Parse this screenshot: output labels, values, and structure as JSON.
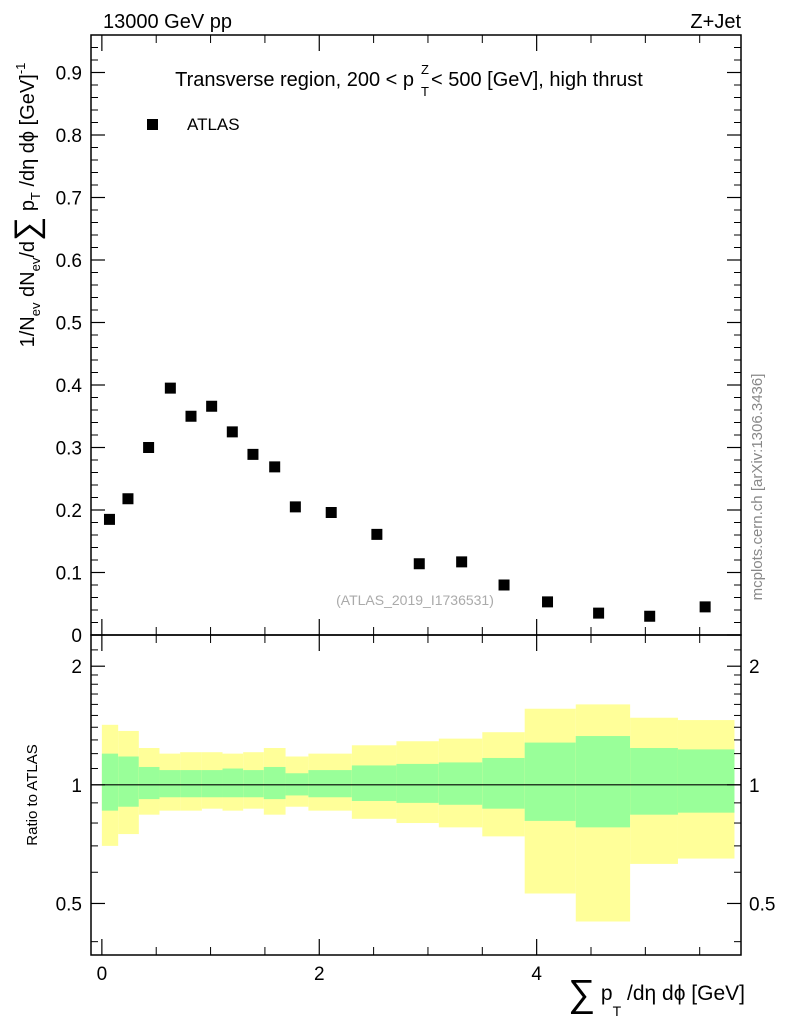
{
  "header": {
    "left_label": "13000 GeV pp",
    "right_label": "Z+Jet"
  },
  "watermark": {
    "side_label": "mcplots.cern.ch [arXiv:1306.3436]",
    "analysis_label": "(ATLAS_2019_I1736531)"
  },
  "chart_data": [
    {
      "type": "scatter",
      "panel": "main",
      "title_parts": {
        "before": "Transverse region, 200 < p",
        "sup": "Z",
        "sub": "T",
        "after": " < 500 [GeV], high thrust"
      },
      "ylabel_parts": {
        "a": "1/N",
        "a_sub": "ev",
        "b": " dN",
        "b_sub": "ev",
        "c": "/d",
        "sigma": "∑",
        "d": " p",
        "d_sub": "T",
        "e": " /dη dϕ  [GeV]",
        "e_sup": "-1"
      },
      "xlim": [
        -0.1,
        5.88
      ],
      "ylim": [
        0,
        0.96
      ],
      "yticks": [
        {
          "v": 0,
          "label": "0"
        },
        {
          "v": 0.1,
          "label": "0.1"
        },
        {
          "v": 0.2,
          "label": "0.2"
        },
        {
          "v": 0.3,
          "label": "0.3"
        },
        {
          "v": 0.4,
          "label": "0.4"
        },
        {
          "v": 0.5,
          "label": "0.5"
        },
        {
          "v": 0.6,
          "label": "0.6"
        },
        {
          "v": 0.7,
          "label": "0.7"
        },
        {
          "v": 0.8,
          "label": "0.8"
        },
        {
          "v": 0.9,
          "label": "0.9"
        }
      ],
      "legend": [
        {
          "name": "ATLAS",
          "marker": "square",
          "color": "#000000"
        }
      ],
      "series": [
        {
          "name": "ATLAS",
          "x": [
            0.07,
            0.24,
            0.43,
            0.63,
            0.82,
            1.01,
            1.2,
            1.39,
            1.59,
            1.78,
            2.11,
            2.53,
            2.92,
            3.31,
            3.7,
            4.1,
            4.57,
            5.04,
            5.55
          ],
          "y": [
            0.185,
            0.218,
            0.3,
            0.395,
            0.35,
            0.366,
            0.325,
            0.289,
            0.269,
            0.205,
            0.196,
            0.161,
            0.114,
            0.117,
            0.08,
            0.053,
            0.035,
            0.03,
            0.045
          ]
        }
      ]
    },
    {
      "type": "area",
      "panel": "ratio",
      "ylabel": "Ratio to ATLAS",
      "xlabel_parts": {
        "sigma": "∑",
        "a": " p",
        "a_sub": "T",
        "b": " /dη dϕ [GeV]"
      },
      "xlim": [
        -0.1,
        5.88
      ],
      "ylim": [
        0.37,
        2.4
      ],
      "ylog": true,
      "xticks": [
        {
          "v": 0,
          "label": "0"
        },
        {
          "v": 2,
          "label": "2"
        },
        {
          "v": 4,
          "label": "4"
        }
      ],
      "yticks": [
        {
          "v": 0.5,
          "label": "0.5"
        },
        {
          "v": 1,
          "label": "1"
        },
        {
          "v": 2,
          "label": "2"
        }
      ],
      "reference_line": 1,
      "band_colors": {
        "outer": "#ffff99",
        "inner": "#99ff99"
      },
      "bins": [
        {
          "lo": 0.0,
          "hi": 0.15,
          "y_lo": 0.7,
          "y_hi": 1.42,
          "g_lo": 0.86,
          "g_hi": 1.2
        },
        {
          "lo": 0.15,
          "hi": 0.34,
          "y_lo": 0.75,
          "y_hi": 1.37,
          "g_lo": 0.88,
          "g_hi": 1.18
        },
        {
          "lo": 0.34,
          "hi": 0.53,
          "y_lo": 0.84,
          "y_hi": 1.24,
          "g_lo": 0.92,
          "g_hi": 1.11
        },
        {
          "lo": 0.53,
          "hi": 0.72,
          "y_lo": 0.86,
          "y_hi": 1.2,
          "g_lo": 0.93,
          "g_hi": 1.09
        },
        {
          "lo": 0.72,
          "hi": 0.92,
          "y_lo": 0.86,
          "y_hi": 1.21,
          "g_lo": 0.93,
          "g_hi": 1.09
        },
        {
          "lo": 0.92,
          "hi": 1.11,
          "y_lo": 0.87,
          "y_hi": 1.21,
          "g_lo": 0.93,
          "g_hi": 1.09
        },
        {
          "lo": 1.11,
          "hi": 1.3,
          "y_lo": 0.86,
          "y_hi": 1.2,
          "g_lo": 0.93,
          "g_hi": 1.1
        },
        {
          "lo": 1.3,
          "hi": 1.49,
          "y_lo": 0.87,
          "y_hi": 1.21,
          "g_lo": 0.93,
          "g_hi": 1.09
        },
        {
          "lo": 1.49,
          "hi": 1.69,
          "y_lo": 0.84,
          "y_hi": 1.24,
          "g_lo": 0.92,
          "g_hi": 1.11
        },
        {
          "lo": 1.69,
          "hi": 1.9,
          "y_lo": 0.88,
          "y_hi": 1.18,
          "g_lo": 0.94,
          "g_hi": 1.07
        },
        {
          "lo": 1.9,
          "hi": 2.3,
          "y_lo": 0.86,
          "y_hi": 1.2,
          "g_lo": 0.93,
          "g_hi": 1.09
        },
        {
          "lo": 2.3,
          "hi": 2.71,
          "y_lo": 0.82,
          "y_hi": 1.26,
          "g_lo": 0.91,
          "g_hi": 1.12
        },
        {
          "lo": 2.71,
          "hi": 3.1,
          "y_lo": 0.8,
          "y_hi": 1.29,
          "g_lo": 0.9,
          "g_hi": 1.13
        },
        {
          "lo": 3.1,
          "hi": 3.5,
          "y_lo": 0.78,
          "y_hi": 1.31,
          "g_lo": 0.89,
          "g_hi": 1.14
        },
        {
          "lo": 3.5,
          "hi": 3.89,
          "y_lo": 0.74,
          "y_hi": 1.36,
          "g_lo": 0.87,
          "g_hi": 1.17
        },
        {
          "lo": 3.89,
          "hi": 4.36,
          "y_lo": 0.53,
          "y_hi": 1.56,
          "g_lo": 0.81,
          "g_hi": 1.28
        },
        {
          "lo": 4.36,
          "hi": 4.86,
          "y_lo": 0.45,
          "y_hi": 1.6,
          "g_lo": 0.78,
          "g_hi": 1.33
        },
        {
          "lo": 4.86,
          "hi": 5.3,
          "y_lo": 0.63,
          "y_hi": 1.48,
          "g_lo": 0.84,
          "g_hi": 1.24
        },
        {
          "lo": 5.3,
          "hi": 5.82,
          "y_lo": 0.65,
          "y_hi": 1.46,
          "g_lo": 0.85,
          "g_hi": 1.23
        }
      ]
    }
  ]
}
